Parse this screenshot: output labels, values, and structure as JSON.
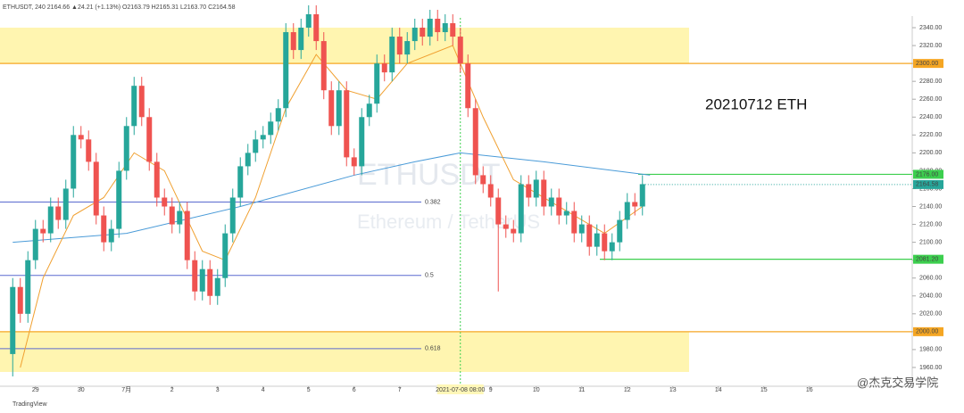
{
  "chart_data": {
    "type": "candlestick",
    "header": "ETHUSDT, 240 2164.66 ▲24.21 (+1.13%) O2163.79 H2165.31 L2163.70 C2164.58",
    "annotation": "20210712 ETH",
    "watermark": "ETHUSDT",
    "watermark_sub": "Ethereum / TetherUS",
    "footer": "TradingView",
    "credit": "@杰克交易学院",
    "cursor_label": "2021-07-08 08:00",
    "cursor_index": 59,
    "price_tag": {
      "value": 2164.58,
      "label": "2164.58"
    },
    "ylim": [
      1939,
      2351
    ],
    "yticks": [
      {
        "value": 1960,
        "label": "1960.00"
      },
      {
        "value": 1980,
        "label": "1980.00"
      },
      {
        "value": 2000,
        "label": "2000.00"
      },
      {
        "value": 2020,
        "label": "2020.00"
      },
      {
        "value": 2040,
        "label": "2040.00"
      },
      {
        "value": 2060,
        "label": "2060.00"
      },
      {
        "value": 2080,
        "label": "2080.00"
      },
      {
        "value": 2100,
        "label": "2100.00"
      },
      {
        "value": 2120,
        "label": "2120.00"
      },
      {
        "value": 2140,
        "label": "2140.00"
      },
      {
        "value": 2160,
        "label": "2160.00"
      },
      {
        "value": 2180,
        "label": "2180.00"
      },
      {
        "value": 2200,
        "label": "2200.00"
      },
      {
        "value": 2220,
        "label": "2220.00"
      },
      {
        "value": 2240,
        "label": "2240.00"
      },
      {
        "value": 2260,
        "label": "2260.00"
      },
      {
        "value": 2280,
        "label": "2280.00"
      },
      {
        "value": 2300,
        "label": "2300.00"
      },
      {
        "value": 2320,
        "label": "2320.00"
      },
      {
        "value": 2340,
        "label": "2340.00"
      }
    ],
    "xlim": [
      -0.5,
      117.5
    ],
    "xticks": [
      {
        "value": 3,
        "label": "29"
      },
      {
        "value": 9,
        "label": "30"
      },
      {
        "value": 15,
        "label": "7月"
      },
      {
        "value": 21,
        "label": "2"
      },
      {
        "value": 27,
        "label": "3"
      },
      {
        "value": 33,
        "label": "4"
      },
      {
        "value": 39,
        "label": "5"
      },
      {
        "value": 45,
        "label": "6"
      },
      {
        "value": 51,
        "label": "7"
      },
      {
        "value": 63,
        "label": "9"
      },
      {
        "value": 69,
        "label": "10"
      },
      {
        "value": 75,
        "label": "11"
      },
      {
        "value": 81,
        "label": "12"
      },
      {
        "value": 87,
        "label": "13"
      },
      {
        "value": 93,
        "label": "14"
      },
      {
        "value": 99,
        "label": "15"
      },
      {
        "value": 105,
        "label": "16"
      }
    ],
    "up_color": "#26a69a",
    "down_color": "#ef5350",
    "open": [
      1975,
      2050,
      2020,
      2080,
      2115,
      2110,
      2140,
      2125,
      2160,
      2220,
      2215,
      2190,
      2130,
      2100,
      2115,
      2180,
      2230,
      2275,
      2240,
      2190,
      2150,
      2140,
      2120,
      2135,
      2080,
      2045,
      2070,
      2040,
      2060,
      2110,
      2150,
      2185,
      2200,
      2215,
      2220,
      2235,
      2250,
      2335,
      2315,
      2340,
      2355,
      2325,
      2270,
      2230,
      2270,
      2195,
      2185,
      2240,
      2255,
      2300,
      2290,
      2330,
      2310,
      2325,
      2340,
      2330,
      2350,
      2335,
      2345,
      2330,
      2300,
      2250,
      2175,
      2165,
      2150,
      2120,
      2115,
      2110,
      2165,
      2150,
      2170,
      2140,
      2150,
      2130,
      2135,
      2110,
      2120,
      2095,
      2110,
      2090,
      2100,
      2125,
      2145,
      2140
    ],
    "high": [
      2060,
      2060,
      2090,
      2125,
      2125,
      2150,
      2150,
      2170,
      2230,
      2230,
      2225,
      2200,
      2140,
      2125,
      2190,
      2240,
      2285,
      2285,
      2250,
      2200,
      2160,
      2150,
      2145,
      2145,
      2090,
      2080,
      2080,
      2070,
      2120,
      2160,
      2195,
      2210,
      2225,
      2230,
      2245,
      2260,
      2345,
      2345,
      2350,
      2365,
      2365,
      2335,
      2280,
      2280,
      2280,
      2205,
      2250,
      2265,
      2310,
      2310,
      2340,
      2340,
      2335,
      2350,
      2350,
      2360,
      2360,
      2355,
      2355,
      2340,
      2310,
      2260,
      2185,
      2175,
      2160,
      2130,
      2125,
      2175,
      2175,
      2180,
      2180,
      2160,
      2160,
      2145,
      2145,
      2130,
      2130,
      2120,
      2120,
      2110,
      2135,
      2155,
      2155,
      2175
    ],
    "low": [
      1950,
      2010,
      2010,
      2070,
      2100,
      2100,
      2115,
      2115,
      2150,
      2205,
      2180,
      2120,
      2090,
      2090,
      2105,
      2170,
      2220,
      2230,
      2180,
      2140,
      2130,
      2110,
      2110,
      2070,
      2035,
      2035,
      2030,
      2030,
      2050,
      2100,
      2140,
      2175,
      2190,
      2205,
      2210,
      2225,
      2240,
      2305,
      2305,
      2330,
      2315,
      2260,
      2220,
      2220,
      2185,
      2175,
      2175,
      2230,
      2245,
      2280,
      2280,
      2300,
      2300,
      2315,
      2320,
      2320,
      2325,
      2325,
      2320,
      2290,
      2240,
      2165,
      2155,
      2140,
      2045,
      2105,
      2100,
      2100,
      2140,
      2140,
      2130,
      2130,
      2120,
      2120,
      2100,
      2100,
      2085,
      2085,
      2080,
      2080,
      2090,
      2115,
      2130,
      2130
    ],
    "close": [
      2050,
      2020,
      2080,
      2115,
      2110,
      2140,
      2125,
      2160,
      2220,
      2215,
      2190,
      2130,
      2100,
      2115,
      2180,
      2230,
      2275,
      2240,
      2190,
      2150,
      2140,
      2120,
      2135,
      2080,
      2045,
      2070,
      2040,
      2060,
      2110,
      2150,
      2185,
      2200,
      2215,
      2220,
      2235,
      2250,
      2335,
      2315,
      2340,
      2355,
      2325,
      2270,
      2230,
      2270,
      2195,
      2185,
      2240,
      2255,
      2300,
      2290,
      2330,
      2310,
      2325,
      2340,
      2330,
      2350,
      2335,
      2345,
      2330,
      2300,
      2250,
      2175,
      2165,
      2150,
      2120,
      2115,
      2110,
      2165,
      2150,
      2170,
      2140,
      2150,
      2130,
      2135,
      2110,
      2120,
      2095,
      2110,
      2090,
      2100,
      2125,
      2145,
      2140,
      2165
    ],
    "lines": [
      {
        "color": "#4a9bd8",
        "x": [
          0,
          15,
          30,
          45,
          53,
          59,
          70,
          84
        ],
        "values": [
          2100,
          2110,
          2140,
          2175,
          2190,
          2200,
          2190,
          2175
        ]
      },
      {
        "color": "#f0a030",
        "x": [
          1,
          4,
          8,
          12,
          16,
          20,
          25,
          28,
          32,
          36,
          40,
          44,
          48,
          52,
          58,
          62,
          66,
          72,
          78,
          83
        ],
        "values": [
          1960,
          2060,
          2130,
          2150,
          2200,
          2180,
          2090,
          2080,
          2150,
          2250,
          2310,
          2270,
          2260,
          2300,
          2320,
          2240,
          2170,
          2140,
          2110,
          2140
        ]
      }
    ],
    "zones": [
      {
        "from": 2300,
        "to": 2340,
        "color": "#fff5b0"
      },
      {
        "from": 1955,
        "to": 2000,
        "color": "#fff5b0"
      }
    ],
    "levels": [
      {
        "value": 2300,
        "color": "#f5a623",
        "label": "2300.00"
      },
      {
        "value": 2000,
        "color": "#f5a623",
        "label": "2000.00"
      },
      {
        "value": 2176,
        "color": "#3ccf4e",
        "label": "2176.00"
      },
      {
        "value": 2081,
        "color": "#3ccf4e",
        "label": "2081.20"
      }
    ],
    "fib": [
      {
        "value": 2145,
        "label": "0.382"
      },
      {
        "value": 2063,
        "label": "0.5"
      },
      {
        "value": 1981,
        "label": "0.618"
      }
    ]
  }
}
